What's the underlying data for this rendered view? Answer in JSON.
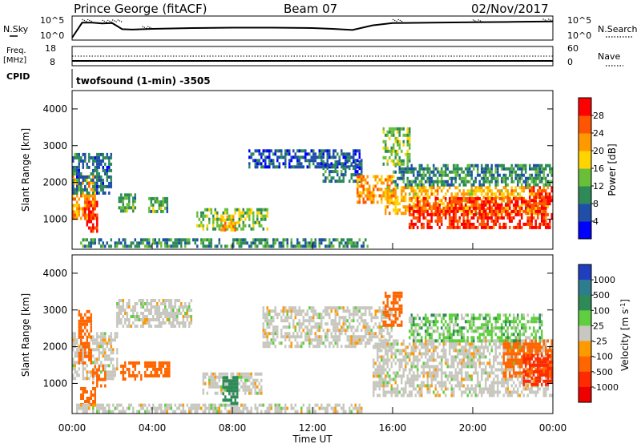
{
  "header": {
    "station": "Prince George (fitACF)",
    "beam": "Beam 07",
    "date": "02/Nov/2017"
  },
  "strip_labels": {
    "nsky": "N.Sky",
    "nsearch": "N.Search",
    "freq": "Freq.",
    "freq_unit": "[MHz]",
    "nave": "Nave",
    "cpid": "CPID",
    "mode": "twofsound (1-min) -3505",
    "nsky_ticks": [
      {
        "base": "10",
        "exp": "^5"
      },
      {
        "base": "10",
        "exp": "^0"
      }
    ],
    "freq_ticks": [
      "18",
      "8"
    ],
    "nave_ticks": [
      "60",
      "0"
    ]
  },
  "colors": {
    "power_scale": [
      "#0000ff",
      "#1f4fa8",
      "#2e8b57",
      "#6abf3a",
      "#ffd400",
      "#ff9900",
      "#ff5500",
      "#ff0000"
    ],
    "velocity_scale": [
      "#1f3fbf",
      "#2e7d8f",
      "#2e8b57",
      "#5fcf3f",
      "#c8c8c0",
      "#ff9900",
      "#ff6600",
      "#ff2a00",
      "#ee0000"
    ],
    "scatter_gray": "#c8c8c0"
  },
  "chart_data": [
    {
      "type": "line",
      "name": "nsky-strip",
      "x_unit": "hours UT",
      "xlim": [
        0,
        24
      ],
      "ylim_log10": [
        0,
        5
      ],
      "series": [
        {
          "name": "N.Sky",
          "x": [
            0,
            0.5,
            1,
            1.5,
            2,
            2.5,
            3,
            4,
            6,
            8,
            10,
            12,
            13,
            14,
            15,
            16,
            18,
            20,
            22,
            24
          ],
          "y_log10": [
            0,
            3.9,
            3.9,
            3.7,
            3.8,
            2.2,
            2.1,
            2.3,
            2.5,
            2.6,
            2.6,
            2.5,
            2.3,
            2.0,
            3.2,
            3.8,
            3.9,
            4.0,
            4.1,
            4.2
          ]
        },
        {
          "name": "N.Search",
          "x": [
            0.5,
            1.5,
            2.0,
            3.5,
            16,
            20,
            23.5
          ],
          "y_log10": [
            4.6,
            4.4,
            4.5,
            2.8,
            4.6,
            4.5,
            4.7
          ]
        }
      ]
    },
    {
      "type": "line",
      "name": "freq-nave-strip",
      "xlim": [
        0,
        24
      ],
      "series": [
        {
          "name": "Freq. [MHz]",
          "x": [
            0,
            24
          ],
          "y": [
            10,
            10
          ]
        },
        {
          "name": "Nave",
          "x": [
            0,
            24
          ],
          "y": [
            30,
            30
          ]
        }
      ],
      "ylim_freq": [
        8,
        18
      ],
      "ylim_nave": [
        0,
        60
      ]
    },
    {
      "type": "heatmap",
      "name": "power-panel",
      "ylabel": "Slant Range [km]",
      "xlim": [
        0,
        24
      ],
      "ylim": [
        180,
        4500
      ],
      "yticks": [
        "1000",
        "2000",
        "3000",
        "4000"
      ],
      "colorbar_label": "Power [dB]",
      "colorbar_ticks": [
        "4",
        "8",
        "12",
        "16",
        "20",
        "24",
        "28"
      ],
      "colorbar_range": [
        0,
        32
      ],
      "regions": [
        {
          "t0": 0.0,
          "t1": 1.2,
          "r0": 1000,
          "r1": 2200,
          "val": 22
        },
        {
          "t0": 0.6,
          "t1": 1.3,
          "r0": 700,
          "r1": 1500,
          "val": 30
        },
        {
          "t0": 0.0,
          "t1": 2.0,
          "r0": 1700,
          "r1": 2800,
          "val": 8
        },
        {
          "t0": 2.3,
          "t1": 3.2,
          "r0": 1200,
          "r1": 1700,
          "val": 12
        },
        {
          "t0": 3.8,
          "t1": 4.8,
          "r0": 1200,
          "r1": 1600,
          "val": 12
        },
        {
          "t0": 6.2,
          "t1": 9.8,
          "r0": 700,
          "r1": 1300,
          "val": 14
        },
        {
          "t0": 7.4,
          "t1": 8.2,
          "r0": 700,
          "r1": 1100,
          "val": 22
        },
        {
          "t0": 0.4,
          "t1": 14.8,
          "r0": 220,
          "r1": 480,
          "val": 10
        },
        {
          "t0": 8.8,
          "t1": 14.5,
          "r0": 2400,
          "r1": 2900,
          "val": 6
        },
        {
          "t0": 12.5,
          "t1": 14.5,
          "r0": 2000,
          "r1": 2600,
          "val": 8
        },
        {
          "t0": 14.2,
          "t1": 16.2,
          "r0": 1500,
          "r1": 2200,
          "val": 22
        },
        {
          "t0": 15.6,
          "t1": 23.8,
          "r0": 1200,
          "r1": 1900,
          "val": 20
        },
        {
          "t0": 16.8,
          "t1": 24.0,
          "r0": 800,
          "r1": 1600,
          "val": 28
        },
        {
          "t0": 16.0,
          "t1": 24.0,
          "r0": 1900,
          "r1": 2500,
          "val": 10
        },
        {
          "t0": 15.5,
          "t1": 16.8,
          "r0": 2500,
          "r1": 3500,
          "val": 14
        },
        {
          "t0": 22.8,
          "t1": 24.0,
          "r0": 1300,
          "r1": 1900,
          "val": 29
        }
      ]
    },
    {
      "type": "heatmap",
      "name": "velocity-panel",
      "ylabel": "Slant Range [km]",
      "xlabel": "Time UT",
      "xlim": [
        0,
        24
      ],
      "ylim": [
        180,
        4500
      ],
      "xticks": [
        "00:00",
        "04:00",
        "08:00",
        "12:00",
        "16:00",
        "20:00",
        "00:00"
      ],
      "yticks": [
        "1000",
        "2000",
        "3000",
        "4000"
      ],
      "colorbar_label": "Velocity [m s^-1]",
      "colorbar_ticks": [
        "1000",
        "500",
        "100",
        "25",
        "-25",
        "-100",
        "-500",
        "-1000"
      ],
      "regions": [
        {
          "t0": 0.0,
          "t1": 2.3,
          "r0": 1100,
          "r1": 2400,
          "val": 0
        },
        {
          "t0": 0.3,
          "t1": 1.0,
          "r0": 1600,
          "r1": 3000,
          "val": -300
        },
        {
          "t0": 1.0,
          "t1": 1.7,
          "r0": 900,
          "r1": 1500,
          "val": -400
        },
        {
          "t0": 0.4,
          "t1": 1.2,
          "r0": 450,
          "r1": 900,
          "val": -250
        },
        {
          "t0": 2.4,
          "t1": 3.5,
          "r0": 1100,
          "r1": 1600,
          "val": -200
        },
        {
          "t0": 3.6,
          "t1": 4.9,
          "r0": 1200,
          "r1": 1600,
          "val": -350
        },
        {
          "t0": 2.2,
          "t1": 6.0,
          "r0": 2600,
          "r1": 3300,
          "val": 0
        },
        {
          "t0": 0.2,
          "t1": 14.5,
          "r0": 200,
          "r1": 450,
          "val": 0
        },
        {
          "t0": 6.5,
          "t1": 9.5,
          "r0": 700,
          "r1": 1300,
          "val": 0
        },
        {
          "t0": 7.5,
          "t1": 8.3,
          "r0": 500,
          "r1": 1200,
          "val": 120
        },
        {
          "t0": 9.5,
          "t1": 16.0,
          "r0": 2000,
          "r1": 3100,
          "val": 0
        },
        {
          "t0": 15.0,
          "t1": 24.0,
          "r0": 700,
          "r1": 2200,
          "val": 0
        },
        {
          "t0": 21.5,
          "t1": 24.0,
          "r0": 1200,
          "r1": 2200,
          "val": -200
        },
        {
          "t0": 22.5,
          "t1": 24.0,
          "r0": 1000,
          "r1": 1800,
          "val": -800
        },
        {
          "t0": 15.5,
          "t1": 16.5,
          "r0": 2600,
          "r1": 3500,
          "val": -300
        },
        {
          "t0": 16.8,
          "t1": 23.5,
          "r0": 2200,
          "r1": 2900,
          "val": 40
        }
      ]
    }
  ]
}
